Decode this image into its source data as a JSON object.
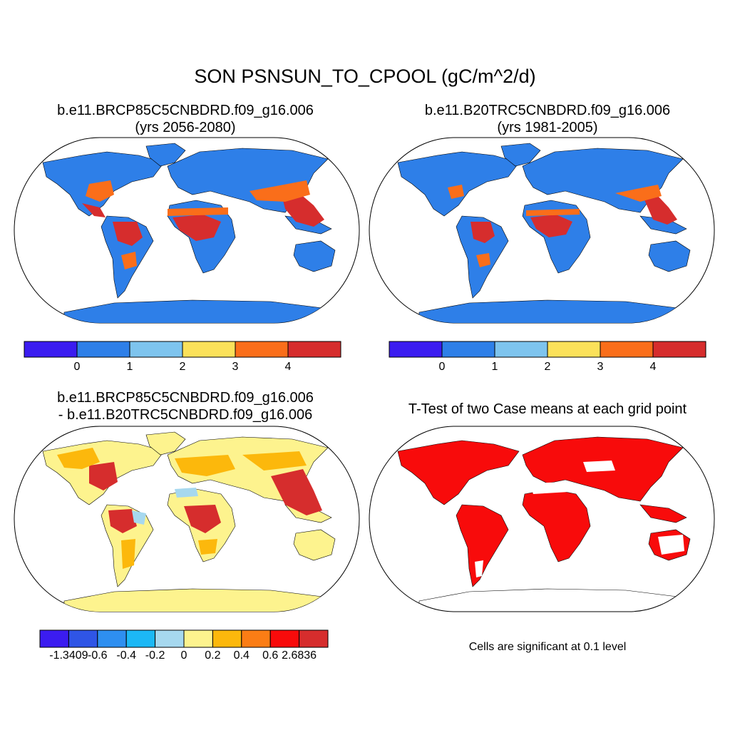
{
  "title": "SON PSNSUN_TO_CPOOL (gC/m^2/d)",
  "panels": [
    {
      "id": "top-left",
      "title_line1": "b.e11.BRCP85C5CNBDRD.f09_g16.006",
      "title_line2": "(yrs 2056-2080)",
      "colorbar": {
        "colors": [
          "#3b1cf0",
          "#2e7fe8",
          "#7ec4ee",
          "#fbe15a",
          "#fa6e1a",
          "#d62d2d"
        ],
        "labels": [
          "0",
          "1",
          "2",
          "3",
          "4"
        ]
      }
    },
    {
      "id": "top-right",
      "title_line1": "b.e11.B20TRC5CNBDRD.f09_g16.006",
      "title_line2": "(yrs 1981-2005)",
      "colorbar": {
        "colors": [
          "#3b1cf0",
          "#2e7fe8",
          "#7ec4ee",
          "#fbe15a",
          "#fa6e1a",
          "#d62d2d"
        ],
        "labels": [
          "0",
          "1",
          "2",
          "3",
          "4"
        ]
      }
    },
    {
      "id": "bottom-left",
      "title_line1": "b.e11.BRCP85C5CNBDRD.f09_g16.006",
      "title_line2": "- b.e11.B20TRC5CNBDRD.f09_g16.006",
      "colorbar": {
        "colors": [
          "#3b1cf0",
          "#2f55e6",
          "#2e8ff0",
          "#1cb8f5",
          "#a6d8ef",
          "#fdf38e",
          "#fcb80c",
          "#fb7d15",
          "#f80b0b",
          "#d62d2d"
        ],
        "labels": [
          "-1.3409",
          "-0.6",
          "-0.4",
          "-0.2",
          "0",
          "0.2",
          "0.4",
          "0.6",
          "2.6836"
        ]
      }
    },
    {
      "id": "bottom-right",
      "title_line1": "T-Test of two Case means at each grid point",
      "note": "Cells are significant at 0.1 level"
    }
  ],
  "map_colors": {
    "ocean": "#ffffff",
    "top_base": "#2e7fe8",
    "diff_base": "#fdf38e",
    "ttest": "#f80b0b",
    "outline": "#000000"
  }
}
